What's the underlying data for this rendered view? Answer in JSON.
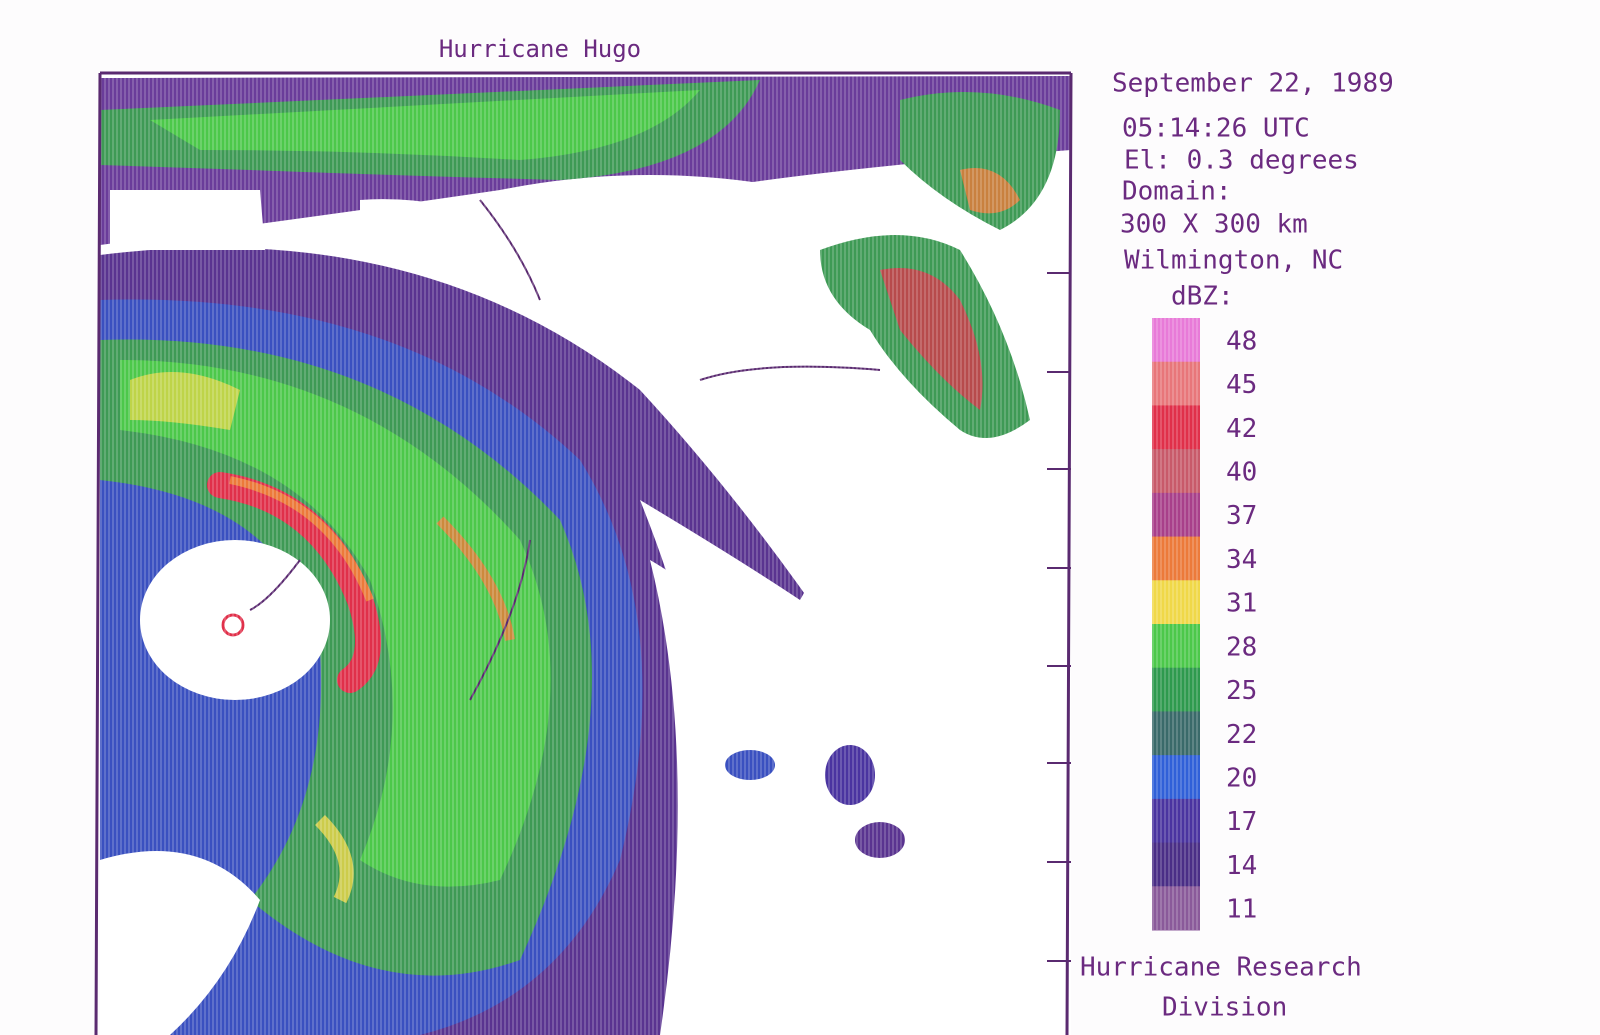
{
  "header": {
    "title": "Hurricane Hugo"
  },
  "info": [
    "September 22, 1989",
    "05:14:26 UTC",
    "El: 0.3 degrees",
    "Domain:",
    "300 X 300 km",
    "Wilmington, NC",
    "dBZ:"
  ],
  "legend": {
    "entries": [
      {
        "label": "48",
        "color": "#e87ad8"
      },
      {
        "label": "45",
        "color": "#e8767a"
      },
      {
        "label": "42",
        "color": "#e0304a"
      },
      {
        "label": "40",
        "color": "#c85a6a"
      },
      {
        "label": "37",
        "color": "#a8408a"
      },
      {
        "label": "34",
        "color": "#ec7a3a"
      },
      {
        "label": "31",
        "color": "#f0d848"
      },
      {
        "label": "28",
        "color": "#4cc84a"
      },
      {
        "label": "25",
        "color": "#2e9a4e"
      },
      {
        "label": "22",
        "color": "#3a6a6a"
      },
      {
        "label": "20",
        "color": "#3060d8"
      },
      {
        "label": "17",
        "color": "#4a34a0"
      },
      {
        "label": "14",
        "color": "#4a2e86"
      },
      {
        "label": "11",
        "color": "#8a5a9a"
      }
    ]
  },
  "footer": [
    "Hurricane Research",
    "Division"
  ]
}
